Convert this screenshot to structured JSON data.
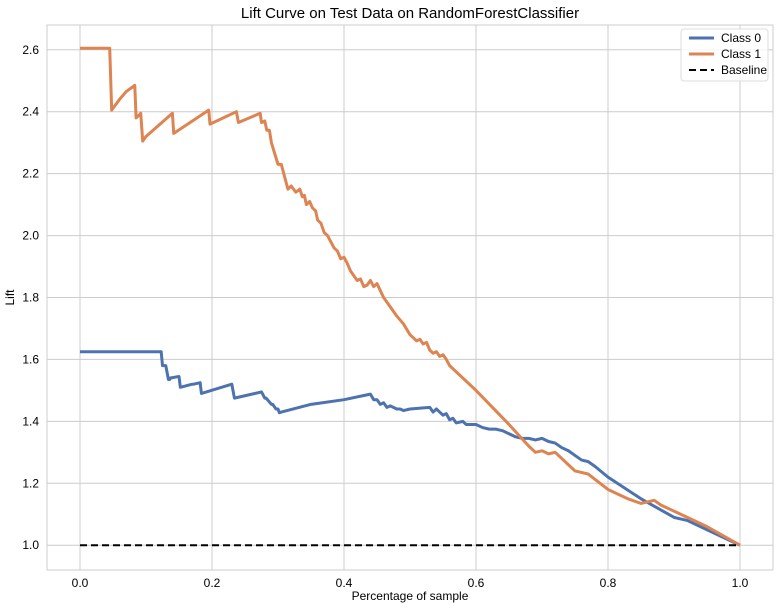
{
  "chart_data": {
    "type": "line",
    "title": "Lift Curve on Test Data on RandomForestClassifier",
    "xlabel": "Percentage of sample",
    "ylabel": "Lift",
    "xlim": [
      -0.05,
      1.05
    ],
    "ylim": [
      0.92,
      2.68
    ],
    "xticks": [
      0.0,
      0.2,
      0.4,
      0.6,
      0.8,
      1.0
    ],
    "xtick_labels": [
      "0.0",
      "0.2",
      "0.4",
      "0.6",
      "0.8",
      "1.0"
    ],
    "yticks": [
      1.0,
      1.2,
      1.4,
      1.6,
      1.8,
      2.0,
      2.2,
      2.4,
      2.6
    ],
    "ytick_labels": [
      "1.0",
      "1.2",
      "1.4",
      "1.6",
      "1.8",
      "2.0",
      "2.2",
      "2.4",
      "2.6"
    ],
    "grid": true,
    "legend_position": "top-right",
    "series": [
      {
        "name": "Class 0",
        "color": "#4c72b0",
        "style": "solid",
        "x": [
          0.0,
          0.123,
          0.125,
          0.13,
          0.134,
          0.136,
          0.137,
          0.15,
          0.152,
          0.17,
          0.172,
          0.182,
          0.184,
          0.23,
          0.234,
          0.275,
          0.28,
          0.282,
          0.29,
          0.292,
          0.297,
          0.3,
          0.302,
          0.305,
          0.35,
          0.4,
          0.44,
          0.445,
          0.45,
          0.455,
          0.46,
          0.465,
          0.47,
          0.48,
          0.485,
          0.49,
          0.5,
          0.53,
          0.535,
          0.54,
          0.55,
          0.555,
          0.56,
          0.565,
          0.57,
          0.58,
          0.585,
          0.6,
          0.61,
          0.62,
          0.63,
          0.64,
          0.65,
          0.66,
          0.67,
          0.68,
          0.69,
          0.7,
          0.71,
          0.72,
          0.73,
          0.74,
          0.75,
          0.76,
          0.77,
          0.78,
          0.8,
          0.85,
          0.9,
          0.91,
          0.92,
          0.95,
          1.0
        ],
        "y": [
          1.625,
          1.625,
          1.58,
          1.58,
          1.535,
          1.535,
          1.54,
          1.545,
          1.51,
          1.52,
          1.52,
          1.525,
          1.49,
          1.52,
          1.475,
          1.495,
          1.475,
          1.475,
          1.455,
          1.455,
          1.44,
          1.44,
          1.428,
          1.43,
          1.455,
          1.47,
          1.488,
          1.47,
          1.47,
          1.455,
          1.46,
          1.445,
          1.45,
          1.44,
          1.44,
          1.435,
          1.44,
          1.445,
          1.43,
          1.44,
          1.42,
          1.425,
          1.405,
          1.41,
          1.395,
          1.4,
          1.39,
          1.39,
          1.38,
          1.375,
          1.375,
          1.37,
          1.36,
          1.35,
          1.345,
          1.345,
          1.34,
          1.345,
          1.335,
          1.33,
          1.315,
          1.305,
          1.29,
          1.275,
          1.27,
          1.255,
          1.22,
          1.15,
          1.09,
          1.085,
          1.08,
          1.05,
          1.0
        ]
      },
      {
        "name": "Class 1",
        "color": "#dd8452",
        "style": "solid",
        "x": [
          0.0,
          0.045,
          0.048,
          0.06,
          0.07,
          0.083,
          0.085,
          0.09,
          0.092,
          0.095,
          0.1,
          0.14,
          0.142,
          0.195,
          0.197,
          0.237,
          0.24,
          0.273,
          0.275,
          0.28,
          0.283,
          0.287,
          0.29,
          0.295,
          0.3,
          0.305,
          0.31,
          0.315,
          0.32,
          0.327,
          0.333,
          0.337,
          0.34,
          0.343,
          0.348,
          0.352,
          0.357,
          0.36,
          0.365,
          0.37,
          0.375,
          0.38,
          0.385,
          0.39,
          0.395,
          0.4,
          0.405,
          0.41,
          0.42,
          0.425,
          0.43,
          0.435,
          0.44,
          0.445,
          0.45,
          0.46,
          0.47,
          0.48,
          0.49,
          0.5,
          0.51,
          0.515,
          0.52,
          0.525,
          0.53,
          0.535,
          0.54,
          0.545,
          0.55,
          0.555,
          0.56,
          0.6,
          0.65,
          0.68,
          0.69,
          0.7,
          0.71,
          0.72,
          0.74,
          0.75,
          0.77,
          0.8,
          0.83,
          0.85,
          0.87,
          0.88,
          0.9,
          0.95,
          1.0
        ],
        "y": [
          2.605,
          2.605,
          2.405,
          2.44,
          2.465,
          2.485,
          2.38,
          2.39,
          2.395,
          2.305,
          2.32,
          2.395,
          2.33,
          2.405,
          2.36,
          2.4,
          2.365,
          2.395,
          2.365,
          2.37,
          2.34,
          2.34,
          2.3,
          2.265,
          2.23,
          2.23,
          2.19,
          2.15,
          2.16,
          2.14,
          2.15,
          2.125,
          2.13,
          2.1,
          2.11,
          2.09,
          2.08,
          2.05,
          2.04,
          2.01,
          2.0,
          1.98,
          1.96,
          1.95,
          1.925,
          1.93,
          1.91,
          1.885,
          1.855,
          1.86,
          1.835,
          1.84,
          1.855,
          1.835,
          1.845,
          1.8,
          1.77,
          1.74,
          1.715,
          1.68,
          1.66,
          1.665,
          1.65,
          1.655,
          1.63,
          1.62,
          1.625,
          1.61,
          1.615,
          1.6,
          1.58,
          1.5,
          1.39,
          1.32,
          1.3,
          1.305,
          1.295,
          1.3,
          1.26,
          1.24,
          1.23,
          1.18,
          1.15,
          1.135,
          1.145,
          1.13,
          1.11,
          1.06,
          1.0
        ]
      },
      {
        "name": "Baseline",
        "color": "#000000",
        "style": "dashed",
        "x": [
          0.0,
          1.0
        ],
        "y": [
          1.0,
          1.0
        ]
      }
    ]
  }
}
